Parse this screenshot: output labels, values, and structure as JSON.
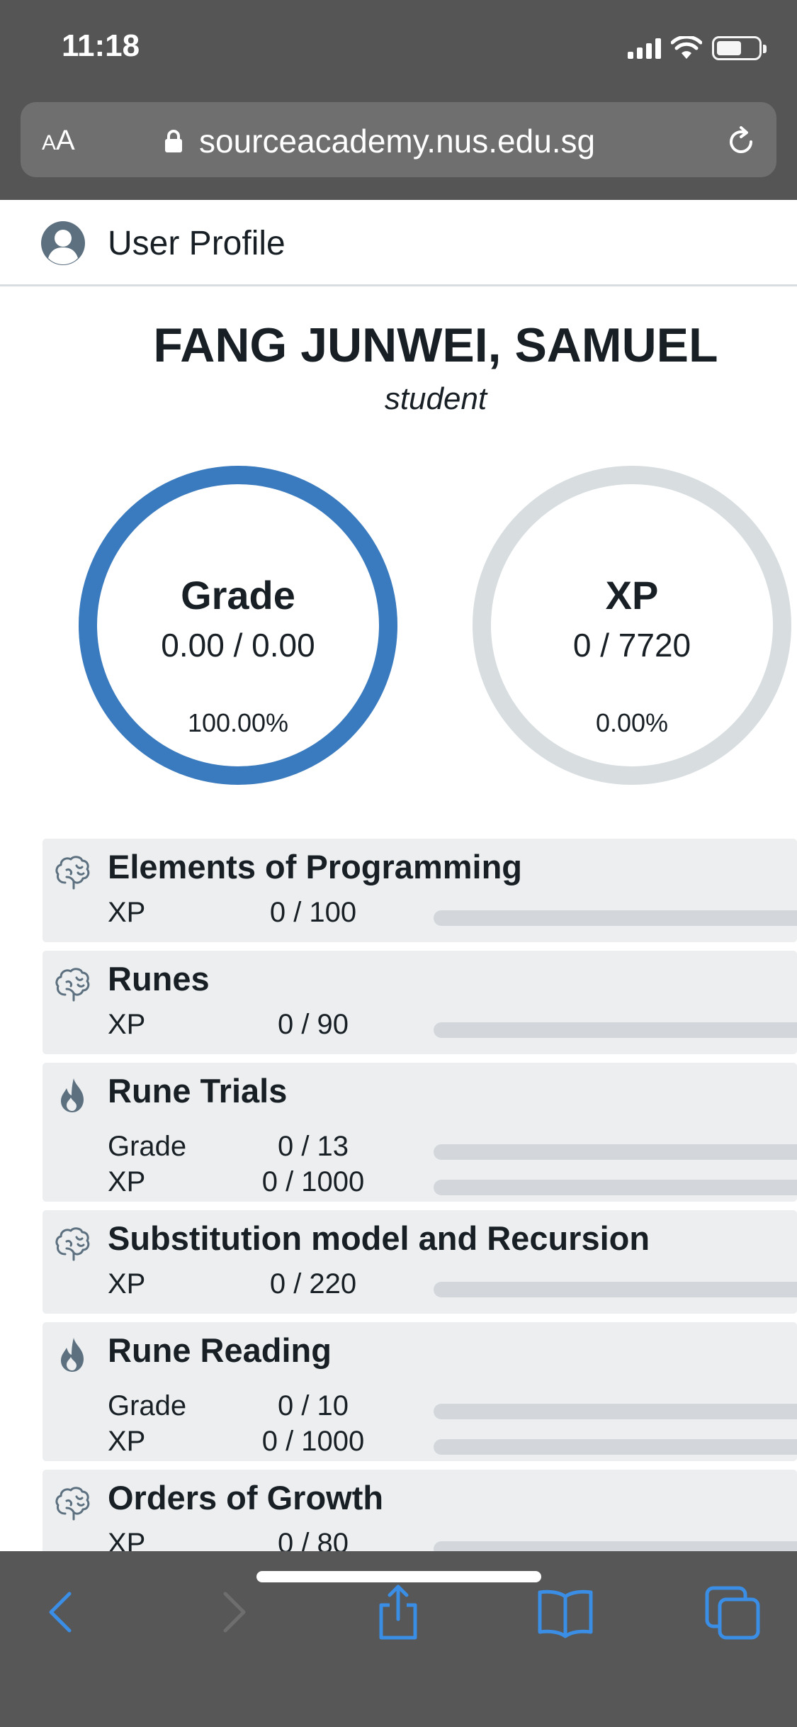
{
  "status_bar": {
    "time": "11:18"
  },
  "browser": {
    "text_size_label": "AA",
    "url": "sourceacademy.nus.edu.sg"
  },
  "header": {
    "title": "User Profile",
    "icon": "user-icon"
  },
  "profile": {
    "name": "FANG JUNWEI, SAMUEL",
    "role": "student",
    "grade": {
      "label": "Grade",
      "value": "0.00 / 0.00",
      "percent": "100.00%",
      "fraction": 1.0,
      "color": "#3a7bbf"
    },
    "xp": {
      "label": "XP",
      "value": "0 / 7720",
      "percent": "0.00%",
      "fraction": 0.0,
      "color": "#3a7bbf"
    }
  },
  "assessments": [
    {
      "icon": "brain-icon",
      "title": "Elements of Programming",
      "rows": [
        {
          "label": "XP",
          "value": "0 / 100",
          "fraction": 0
        }
      ]
    },
    {
      "icon": "brain-icon",
      "title": "Runes",
      "rows": [
        {
          "label": "XP",
          "value": "0 / 90",
          "fraction": 0
        }
      ]
    },
    {
      "icon": "flame-icon",
      "title": "Rune Trials",
      "rows": [
        {
          "label": "Grade",
          "value": "0 / 13",
          "fraction": 0
        },
        {
          "label": "XP",
          "value": "0 / 1000",
          "fraction": 0
        }
      ]
    },
    {
      "icon": "brain-icon",
      "title": "Substitution model and Recursion",
      "rows": [
        {
          "label": "XP",
          "value": "0 / 220",
          "fraction": 0
        }
      ]
    },
    {
      "icon": "flame-icon",
      "title": "Rune Reading",
      "rows": [
        {
          "label": "Grade",
          "value": "0 / 10",
          "fraction": 0
        },
        {
          "label": "XP",
          "value": "0 / 1000",
          "fraction": 0
        }
      ]
    },
    {
      "icon": "brain-icon",
      "title": "Orders of Growth",
      "rows": [
        {
          "label": "XP",
          "value": "0 / 80",
          "fraction": 0
        }
      ]
    }
  ],
  "toolbar": {
    "icons": [
      "back-icon",
      "forward-icon",
      "share-icon",
      "bookmarks-icon",
      "tabs-icon"
    ],
    "accent": "#3a8ee6"
  }
}
